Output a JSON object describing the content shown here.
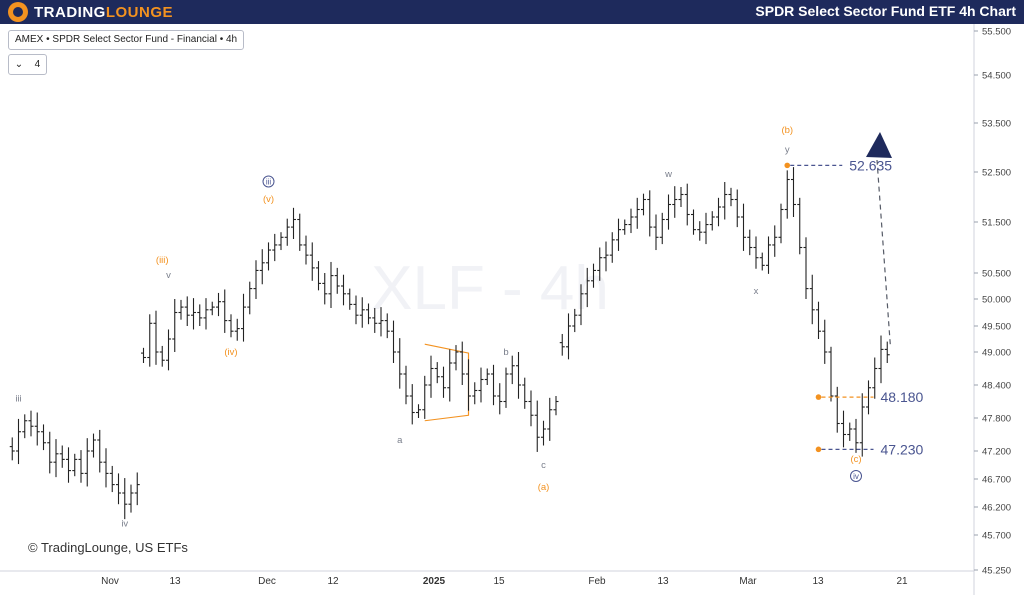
{
  "header": {
    "brand_prefix": "TRADING",
    "brand_suffix": "LOUNGE",
    "chart_title": "SPDR Select Sector Fund ETF 4h Chart"
  },
  "toolbar": {
    "symbol_label": "AMEX • SPDR Select Sector Fund - Financial • 4h",
    "interval_value": "4"
  },
  "watermark": "XLF - 4h",
  "copyright": "© TradingLounge, US ETFs",
  "colors": {
    "header_bg": "#1e2a5c",
    "accent_orange": "#f39220",
    "wave_navy": "#4a5590",
    "bar": "#222222"
  },
  "chart_data": {
    "type": "ohlc",
    "title": "",
    "xlabel": "",
    "ylabel": "",
    "ylim": [
      45.25,
      55.5
    ],
    "y_ticks": [
      45.25,
      45.7,
      46.2,
      46.7,
      47.2,
      47.8,
      48.4,
      49.0,
      49.5,
      50.0,
      50.5,
      51.5,
      52.5,
      53.5,
      54.5,
      55.5
    ],
    "y_tick_labels": [
      "45.250",
      "45.700",
      "46.200",
      "46.700",
      "47.200",
      "47.800",
      "48.400",
      "49.000",
      "49.500",
      "50.000",
      "50.500",
      "51.500",
      "52.500",
      "53.500",
      "54.500",
      "55.500"
    ],
    "x_axis_labels": [
      "Nov",
      "13",
      "Dec",
      "12",
      "2025",
      "15",
      "Feb",
      "13",
      "Mar",
      "13",
      "21"
    ],
    "bars_per_day": 2,
    "bar_days": [
      {
        "pts": [
          [
            1,
            47.2
          ],
          [
            2,
            47.55
          ],
          [
            3,
            47.75
          ],
          [
            4,
            47.65
          ],
          [
            5,
            47.55
          ],
          [
            6,
            47.35
          ],
          [
            7,
            47.0
          ],
          [
            8,
            47.15
          ],
          [
            9,
            47.05
          ],
          [
            10,
            46.85
          ],
          [
            11,
            47.05
          ],
          [
            12,
            46.8
          ],
          [
            13,
            47.2
          ],
          [
            14,
            47.4
          ],
          [
            15,
            47.0
          ],
          [
            16,
            46.8
          ],
          [
            17,
            46.6
          ],
          [
            18,
            46.45
          ],
          [
            19,
            46.25
          ],
          [
            20,
            46.45
          ],
          [
            21,
            46.6
          ]
        ]
      },
      {
        "pts": [
          [
            22,
            48.9
          ],
          [
            23,
            49.55
          ],
          [
            24,
            49.0
          ],
          [
            25,
            48.85
          ],
          [
            26,
            49.25
          ],
          [
            27,
            49.75
          ],
          [
            28,
            49.85
          ],
          [
            29,
            49.7
          ],
          [
            30,
            49.75
          ],
          [
            31,
            49.65
          ],
          [
            32,
            49.8
          ],
          [
            33,
            49.85
          ],
          [
            34,
            49.95
          ],
          [
            35,
            49.6
          ],
          [
            36,
            49.4
          ],
          [
            37,
            49.45
          ],
          [
            38,
            49.85
          ],
          [
            39,
            50.2
          ],
          [
            40,
            50.55
          ],
          [
            41,
            50.7
          ],
          [
            42,
            50.95
          ],
          [
            43,
            51.05
          ],
          [
            44,
            51.2
          ],
          [
            45,
            51.4
          ],
          [
            46,
            51.55
          ],
          [
            47,
            51.05
          ],
          [
            48,
            50.85
          ],
          [
            49,
            50.6
          ],
          [
            50,
            50.3
          ],
          [
            51,
            50.1
          ],
          [
            52,
            50.45
          ],
          [
            53,
            50.25
          ],
          [
            54,
            50.1
          ],
          [
            55,
            49.9
          ],
          [
            56,
            49.7
          ],
          [
            57,
            49.8
          ],
          [
            58,
            49.65
          ],
          [
            59,
            49.55
          ],
          [
            60,
            49.6
          ],
          [
            61,
            49.4
          ],
          [
            62,
            49.0
          ],
          [
            63,
            48.6
          ],
          [
            64,
            48.2
          ],
          [
            65,
            47.9
          ],
          [
            66,
            47.95
          ],
          [
            67,
            48.4
          ],
          [
            68,
            48.7
          ],
          [
            69,
            48.55
          ],
          [
            70,
            48.35
          ],
          [
            71,
            48.8
          ],
          [
            72,
            49.0
          ],
          [
            73,
            48.6
          ],
          [
            74,
            48.2
          ],
          [
            75,
            48.3
          ],
          [
            76,
            48.5
          ],
          [
            77,
            48.6
          ],
          [
            78,
            48.2
          ],
          [
            79,
            48.1
          ],
          [
            80,
            48.6
          ],
          [
            81,
            48.75
          ],
          [
            82,
            48.4
          ],
          [
            83,
            48.1
          ],
          [
            84,
            47.85
          ],
          [
            85,
            47.45
          ],
          [
            86,
            47.6
          ],
          [
            87,
            47.95
          ],
          [
            88,
            48.1
          ]
        ]
      },
      {
        "pts": [
          [
            89,
            49.1
          ],
          [
            90,
            49.5
          ],
          [
            91,
            49.7
          ],
          [
            92,
            50.1
          ],
          [
            93,
            50.35
          ],
          [
            94,
            50.55
          ],
          [
            95,
            50.8
          ],
          [
            96,
            50.85
          ],
          [
            97,
            51.15
          ],
          [
            98,
            51.35
          ],
          [
            99,
            51.45
          ],
          [
            100,
            51.6
          ],
          [
            101,
            51.75
          ],
          [
            102,
            51.95
          ],
          [
            103,
            51.4
          ],
          [
            104,
            51.2
          ],
          [
            105,
            51.55
          ],
          [
            106,
            51.85
          ],
          [
            107,
            51.95
          ],
          [
            108,
            52.05
          ],
          [
            109,
            51.65
          ],
          [
            110,
            51.35
          ],
          [
            111,
            51.3
          ],
          [
            112,
            51.45
          ],
          [
            113,
            51.6
          ],
          [
            114,
            51.8
          ],
          [
            115,
            52.05
          ],
          [
            116,
            51.95
          ],
          [
            117,
            51.6
          ],
          [
            118,
            51.2
          ],
          [
            119,
            51.0
          ],
          [
            120,
            50.8
          ],
          [
            121,
            50.65
          ],
          [
            122,
            51.05
          ],
          [
            123,
            51.2
          ],
          [
            124,
            51.75
          ],
          [
            125,
            52.35
          ],
          [
            126,
            51.85
          ],
          [
            127,
            51.0
          ],
          [
            128,
            50.2
          ],
          [
            129,
            49.8
          ],
          [
            130,
            49.4
          ],
          [
            131,
            49.0
          ],
          [
            132,
            48.2
          ],
          [
            133,
            47.7
          ],
          [
            134,
            47.5
          ],
          [
            135,
            47.6
          ],
          [
            136,
            47.35
          ],
          [
            137,
            48.0
          ],
          [
            138,
            48.35
          ],
          [
            139,
            48.7
          ],
          [
            140,
            49.05
          ],
          [
            141,
            48.95
          ]
        ]
      }
    ],
    "price_levels": [
      {
        "label": "52.635",
        "value": 52.635
      },
      {
        "label": "48.180",
        "value": 48.18
      },
      {
        "label": "47.230",
        "value": 47.23
      }
    ],
    "wave_labels": [
      {
        "text": "iii",
        "bar": 2,
        "y": 48.1,
        "color": "gray"
      },
      {
        "text": "iv",
        "bar": 19,
        "y": 45.85,
        "color": "gray"
      },
      {
        "text": "v",
        "bar": 26,
        "y": 50.4,
        "color": "gray"
      },
      {
        "text": "(iii)",
        "bar": 25,
        "y": 50.7,
        "color": "orange"
      },
      {
        "text": "(iv)",
        "bar": 36,
        "y": 48.95,
        "color": "orange"
      },
      {
        "text": "(v)",
        "bar": 42,
        "y": 51.9,
        "color": "orange"
      },
      {
        "text": "iii",
        "bar": 42,
        "y": 52.25,
        "color": "navy-circle"
      },
      {
        "text": "a",
        "bar": 63,
        "y": 47.35,
        "color": "gray"
      },
      {
        "text": "b",
        "bar": 80,
        "y": 48.95,
        "color": "gray"
      },
      {
        "text": "c",
        "bar": 86,
        "y": 46.9,
        "color": "gray"
      },
      {
        "text": "(a)",
        "bar": 86,
        "y": 46.5,
        "color": "orange"
      },
      {
        "text": "w",
        "bar": 106,
        "y": 52.4,
        "color": "gray"
      },
      {
        "text": "x",
        "bar": 120,
        "y": 50.1,
        "color": "gray"
      },
      {
        "text": "y",
        "bar": 125,
        "y": 52.9,
        "color": "gray"
      },
      {
        "text": "(b)",
        "bar": 125,
        "y": 53.3,
        "color": "orange"
      },
      {
        "text": "(c)",
        "bar": 136,
        "y": 47.0,
        "color": "orange"
      },
      {
        "text": "iv",
        "bar": 136,
        "y": 46.7,
        "color": "navy-circle"
      }
    ]
  }
}
